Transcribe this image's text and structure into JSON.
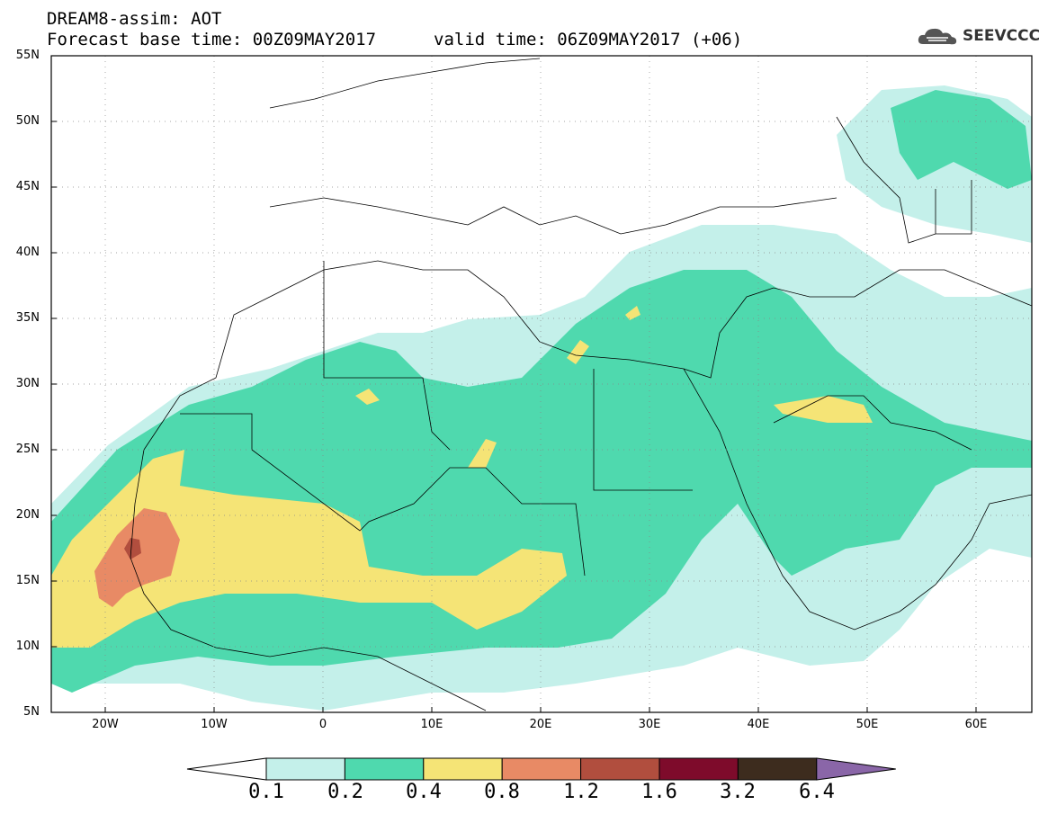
{
  "title": {
    "line1": "DREAM8-assim: AOT",
    "line2": "Forecast base time: 00Z09MAY2017",
    "valid": "valid time: 06Z09MAY2017 (+06)"
  },
  "logo": {
    "text": "SEEVCCC",
    "icon": "cloud-logo-icon"
  },
  "axes": {
    "lat_labels": [
      "55N",
      "50N",
      "45N",
      "40N",
      "35N",
      "30N",
      "25N",
      "20N",
      "15N",
      "10N",
      "5N"
    ],
    "lon_labels": [
      "20W",
      "10W",
      "0",
      "10E",
      "20E",
      "30E",
      "40E",
      "50E",
      "60E"
    ]
  },
  "colorbar": {
    "labels": [
      "0.1",
      "0.2",
      "0.4",
      "0.8",
      "1.2",
      "1.6",
      "3.2",
      "6.4"
    ],
    "colors": [
      "#ffffff",
      "#c4f0ea",
      "#4fd9ae",
      "#f5e476",
      "#e88a65",
      "#b14e3e",
      "#7e0b2b",
      "#3d2c1e",
      "#8a66a8"
    ]
  }
}
